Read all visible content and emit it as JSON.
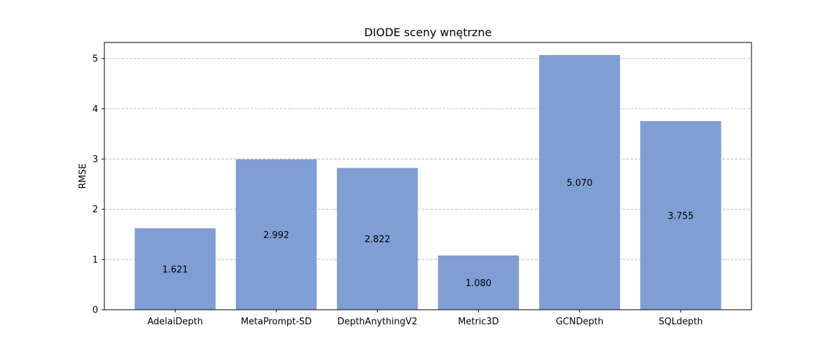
{
  "chart_data": {
    "type": "bar",
    "title": "DIODE sceny wnętrzne",
    "xlabel": "",
    "ylabel": "RMSE",
    "categories": [
      "AdelaiDepth",
      "MetaPrompt-SD",
      "DepthAnythingV2",
      "Metric3D",
      "GCNDepth",
      "SQLdepth"
    ],
    "values": [
      1.621,
      2.992,
      2.822,
      1.08,
      5.07,
      3.755
    ],
    "value_labels": [
      "1.621",
      "2.992",
      "2.822",
      "1.080",
      "5.070",
      "3.755"
    ],
    "ylim": [
      0,
      5.32
    ],
    "yticks": [
      0,
      1,
      2,
      3,
      4,
      5
    ],
    "grid": "horizontal dashed",
    "bar_color": "#7f9ed3",
    "legend": "none"
  }
}
